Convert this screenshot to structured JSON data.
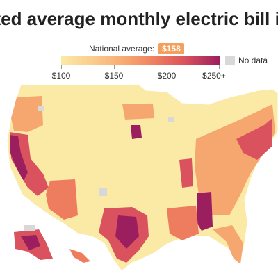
{
  "title": "ated average monthly electric bill in",
  "national_average": {
    "label": "National average:",
    "value": "$158"
  },
  "legend": {
    "ticks": [
      "$100",
      "$150",
      "$200",
      "$250+"
    ],
    "nodata_label": "No data",
    "colors": [
      "#fbe9a6",
      "#fac98a",
      "#f6a66f",
      "#ee7c5e",
      "#d9525d",
      "#9b1f5f"
    ],
    "nodata_color": "#d8d8d8"
  }
}
